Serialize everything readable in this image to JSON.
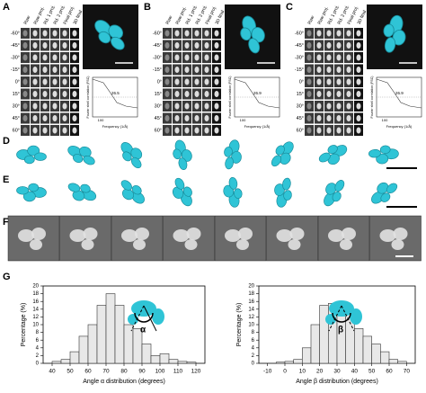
{
  "panel_labels": [
    "A",
    "B",
    "C",
    "D",
    "E",
    "F",
    "G"
  ],
  "row_labels": [
    "-60°",
    "-45°",
    "-30°",
    "-15°",
    "0°",
    "15°",
    "30°",
    "45°",
    "60°"
  ],
  "column_headers": [
    "Raw",
    "Raw proj.",
    "Rd. 1 proj.",
    "Rd. 2 proj.",
    "Final proj.",
    "3D final"
  ],
  "fsc": {
    "ylabel": "Fourier shell correlation (FSC)",
    "xlabel": "Frequency (1/Å)",
    "xtick": "100",
    "values": [
      "26.5",
      "26.9",
      "26.9"
    ]
  },
  "chart_data": [
    {
      "type": "histogram",
      "xlabel": "Angle α distribution (degrees)",
      "ylabel": "Percentage (%)",
      "annotation": "α",
      "bins": [
        40,
        45,
        50,
        55,
        60,
        65,
        70,
        75,
        80,
        85,
        90,
        95,
        100,
        105,
        110,
        115,
        120
      ],
      "values": [
        0.5,
        1,
        3,
        7,
        10,
        15,
        18,
        15,
        10,
        9,
        5,
        2,
        2.5,
        1,
        0.5,
        0.3
      ],
      "color": "#e8e8e8",
      "xlim": [
        35,
        125
      ],
      "xticks": [
        40,
        50,
        60,
        70,
        80,
        90,
        100,
        110,
        120
      ],
      "ylim": [
        0,
        20
      ],
      "yticks": [
        0,
        2,
        4,
        6,
        8,
        10,
        12,
        14,
        16,
        18,
        20
      ]
    },
    {
      "type": "histogram",
      "xlabel": "Angle β distribution (degrees)",
      "ylabel": "Percentage (%)",
      "annotation": "β",
      "bins": [
        -5,
        0,
        5,
        10,
        15,
        20,
        25,
        30,
        35,
        40,
        45,
        50,
        55,
        60,
        65,
        70
      ],
      "values": [
        0.3,
        0.5,
        1,
        4,
        10,
        15,
        15.5,
        14,
        13,
        9,
        7,
        5,
        3,
        1,
        0.5
      ],
      "color": "#e8e8e8",
      "xlim": [
        -15,
        75
      ],
      "xticks": [
        -10,
        0,
        10,
        20,
        30,
        40,
        50,
        60,
        70
      ],
      "ylim": [
        0,
        20
      ],
      "yticks": [
        0,
        2,
        4,
        6,
        8,
        10,
        12,
        14,
        16,
        18,
        20
      ]
    }
  ]
}
